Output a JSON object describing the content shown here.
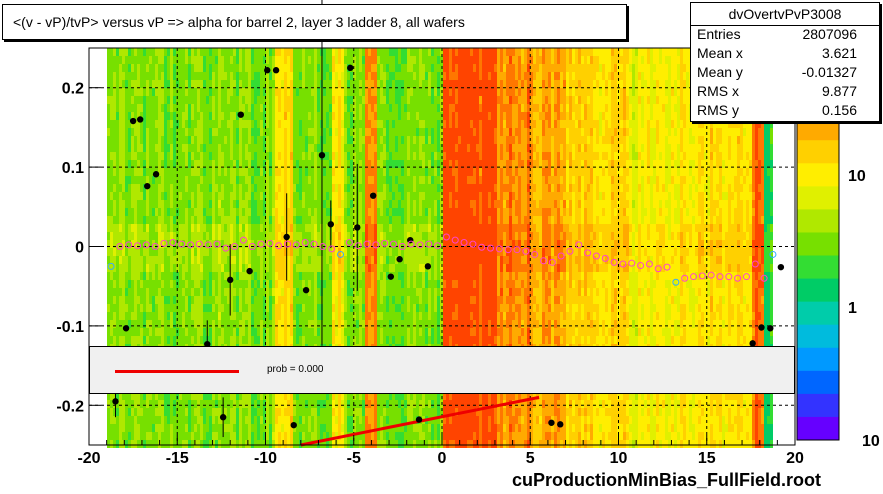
{
  "title": "<(v - vP)/tvP> versus   vP => alpha for barrel 2, layer 3 ladder 8, all wafers",
  "stats": {
    "name": "dvOvertvPvP3008",
    "rows": [
      {
        "label": "Entries",
        "value": "2807096"
      },
      {
        "label": "Mean x",
        "value": "3.621"
      },
      {
        "label": "Mean y",
        "value": "-0.01327"
      },
      {
        "label": "RMS x",
        "value": "9.877"
      },
      {
        "label": "RMS y",
        "value": "0.156"
      }
    ]
  },
  "fit": {
    "prob_label": "prob = 0.000"
  },
  "footer": "cuProductionMinBias_FullField.root",
  "colors": {
    "profile_marker": "#ff44cc",
    "profile_marker_blue": "#33aaff",
    "fit_line": "#ee0000",
    "point": "#000000"
  },
  "chart_data": {
    "type": "heatmap",
    "title": "<(v - vP)/tvP> versus   vP => alpha for barrel 2, layer 3 ladder 8, all wafers",
    "xlabel": "",
    "ylabel": "",
    "xlim": [
      -20,
      20
    ],
    "ylim": [
      -0.25,
      0.25
    ],
    "x_ticks": [
      -20,
      -15,
      -10,
      -5,
      0,
      5,
      10,
      15,
      20
    ],
    "y_ticks": [
      -0.2,
      -0.1,
      0,
      0.1,
      0.2
    ],
    "grid": true,
    "colorbar": {
      "scale": "log",
      "tick_labels": [
        "10",
        "1",
        "10"
      ]
    },
    "profile_points": [
      {
        "x": -18.75,
        "y": -0.025
      },
      {
        "x": -18.25,
        "y": 0.0
      },
      {
        "x": -17.75,
        "y": 0.002
      },
      {
        "x": -17.25,
        "y": 0.001
      },
      {
        "x": -16.75,
        "y": 0.002
      },
      {
        "x": -16.25,
        "y": 0.0
      },
      {
        "x": -15.75,
        "y": 0.004
      },
      {
        "x": -15.25,
        "y": 0.005
      },
      {
        "x": -14.75,
        "y": 0.003
      },
      {
        "x": -14.25,
        "y": 0.002
      },
      {
        "x": -13.75,
        "y": 0.003
      },
      {
        "x": -13.25,
        "y": 0.002
      },
      {
        "x": -12.75,
        "y": 0.003
      },
      {
        "x": -12.25,
        "y": -0.002
      },
      {
        "x": -11.75,
        "y": 0.0
      },
      {
        "x": -11.25,
        "y": 0.008
      },
      {
        "x": -10.75,
        "y": 0.0
      },
      {
        "x": -10.25,
        "y": 0.003
      },
      {
        "x": -9.75,
        "y": 0.004
      },
      {
        "x": -9.25,
        "y": 0.001
      },
      {
        "x": -8.75,
        "y": 0.003
      },
      {
        "x": -8.25,
        "y": 0.002
      },
      {
        "x": -7.75,
        "y": 0.005
      },
      {
        "x": -7.25,
        "y": 0.003
      },
      {
        "x": -6.75,
        "y": 0.0
      },
      {
        "x": -6.25,
        "y": -0.003
      },
      {
        "x": -5.75,
        "y": -0.01
      },
      {
        "x": -5.25,
        "y": 0.005
      },
      {
        "x": -4.75,
        "y": 0.001
      },
      {
        "x": -4.25,
        "y": 0.003
      },
      {
        "x": -3.75,
        "y": 0.002
      },
      {
        "x": -3.25,
        "y": 0.004
      },
      {
        "x": -2.75,
        "y": 0.003
      },
      {
        "x": -2.25,
        "y": 0.0
      },
      {
        "x": -1.75,
        "y": 0.003
      },
      {
        "x": -1.25,
        "y": 0.002
      },
      {
        "x": -0.75,
        "y": 0.003
      },
      {
        "x": -0.25,
        "y": 0.001
      },
      {
        "x": 0.25,
        "y": 0.012
      },
      {
        "x": 0.75,
        "y": 0.008
      },
      {
        "x": 1.25,
        "y": 0.005
      },
      {
        "x": 1.75,
        "y": 0.003
      },
      {
        "x": 2.25,
        "y": -0.001
      },
      {
        "x": 2.75,
        "y": -0.002
      },
      {
        "x": 3.25,
        "y": -0.003
      },
      {
        "x": 3.75,
        "y": -0.004
      },
      {
        "x": 4.25,
        "y": -0.004
      },
      {
        "x": 4.75,
        "y": -0.006
      },
      {
        "x": 5.25,
        "y": -0.01
      },
      {
        "x": 5.75,
        "y": -0.018
      },
      {
        "x": 6.25,
        "y": -0.02
      },
      {
        "x": 6.75,
        "y": -0.012
      },
      {
        "x": 7.25,
        "y": -0.006
      },
      {
        "x": 7.75,
        "y": 0.002
      },
      {
        "x": 8.25,
        "y": -0.008
      },
      {
        "x": 8.75,
        "y": -0.012
      },
      {
        "x": 9.25,
        "y": -0.015
      },
      {
        "x": 9.75,
        "y": -0.02
      },
      {
        "x": 10.25,
        "y": -0.022
      },
      {
        "x": 10.75,
        "y": -0.021
      },
      {
        "x": 11.25,
        "y": -0.024
      },
      {
        "x": 11.75,
        "y": -0.022
      },
      {
        "x": 12.25,
        "y": -0.028
      },
      {
        "x": 12.75,
        "y": -0.026
      },
      {
        "x": 13.25,
        "y": -0.045
      },
      {
        "x": 13.75,
        "y": -0.04
      },
      {
        "x": 14.25,
        "y": -0.038
      },
      {
        "x": 14.75,
        "y": -0.037
      },
      {
        "x": 15.25,
        "y": -0.036
      },
      {
        "x": 15.75,
        "y": -0.038
      },
      {
        "x": 16.25,
        "y": -0.038
      },
      {
        "x": 16.75,
        "y": -0.04
      },
      {
        "x": 17.25,
        "y": -0.038
      },
      {
        "x": 17.75,
        "y": -0.022
      },
      {
        "x": 18.25,
        "y": -0.04
      },
      {
        "x": 18.75,
        "y": -0.01
      }
    ],
    "scatter_points": [
      {
        "x": -18.5,
        "y": -0.195,
        "err": 0.02
      },
      {
        "x": -17.9,
        "y": -0.103,
        "err": 0
      },
      {
        "x": -17.5,
        "y": 0.158,
        "err": 0
      },
      {
        "x": -17.1,
        "y": 0.16,
        "err": 0
      },
      {
        "x": -16.7,
        "y": 0.076,
        "err": 0
      },
      {
        "x": -16.2,
        "y": 0.091,
        "err": 0
      },
      {
        "x": -13.3,
        "y": -0.123,
        "err": 0.03
      },
      {
        "x": -12.4,
        "y": -0.215,
        "err": 0.025
      },
      {
        "x": -12.0,
        "y": -0.042,
        "err": 0.045
      },
      {
        "x": -11.4,
        "y": 0.166,
        "err": 0
      },
      {
        "x": -10.9,
        "y": -0.031,
        "err": 0
      },
      {
        "x": -9.9,
        "y": 0.222,
        "err": 0
      },
      {
        "x": -9.4,
        "y": 0.222,
        "err": 0
      },
      {
        "x": -8.8,
        "y": 0.012,
        "err": 0.055
      },
      {
        "x": -8.4,
        "y": -0.225,
        "err": 0
      },
      {
        "x": -7.7,
        "y": -0.055,
        "err": 0
      },
      {
        "x": -6.8,
        "y": 0.115,
        "err": 0.24
      },
      {
        "x": -6.3,
        "y": 0.028,
        "err": 0.03
      },
      {
        "x": -5.2,
        "y": 0.225,
        "err": 0
      },
      {
        "x": -4.8,
        "y": 0.024,
        "err": 0.08
      },
      {
        "x": -3.9,
        "y": 0.064,
        "err": 0
      },
      {
        "x": -2.9,
        "y": -0.038,
        "err": 0
      },
      {
        "x": -2.4,
        "y": -0.016,
        "err": 0
      },
      {
        "x": -1.8,
        "y": 0.008,
        "err": 0
      },
      {
        "x": -1.3,
        "y": -0.218,
        "err": 0
      },
      {
        "x": -0.8,
        "y": -0.025,
        "err": 0
      },
      {
        "x": 6.2,
        "y": -0.222,
        "err": 0
      },
      {
        "x": 6.7,
        "y": -0.224,
        "err": 0
      },
      {
        "x": 17.6,
        "y": -0.122,
        "err": 0
      },
      {
        "x": 18.1,
        "y": -0.102,
        "err": 0
      },
      {
        "x": 18.6,
        "y": -0.103,
        "err": 0
      },
      {
        "x": 19.2,
        "y": -0.026,
        "err": 0
      }
    ],
    "fit_line": {
      "x": [
        -8,
        5.5
      ],
      "y": [
        -0.25,
        -0.19
      ]
    }
  }
}
